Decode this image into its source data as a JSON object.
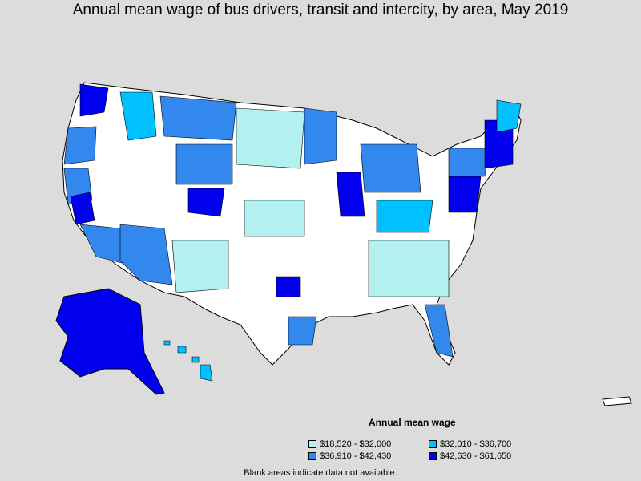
{
  "title": "Annual mean wage of bus drivers, transit and intercity, by area, May 2019",
  "legend": {
    "title": "Annual mean wage",
    "items": [
      {
        "label": "$18,520 - $32,000",
        "color": "#b3f0f0"
      },
      {
        "label": "$32,010 - $36,700",
        "color": "#00c0ff"
      },
      {
        "label": "$36,910 - $42,430",
        "color": "#3388ee"
      },
      {
        "label": "$42,630 - $61,650",
        "color": "#0000ee"
      }
    ]
  },
  "footnote": "Blank areas indicate data not available.",
  "colors": {
    "background": "#dcdcdc",
    "no_data": "#ffffff",
    "border": "#000000"
  }
}
